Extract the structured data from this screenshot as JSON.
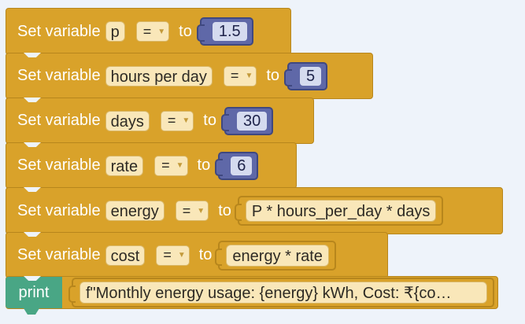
{
  "blocks": [
    {
      "label": "Set variable",
      "var": "p",
      "op": "=",
      "to": "to",
      "value": "1.5",
      "kind": "number"
    },
    {
      "label": "Set variable",
      "var": "hours per day",
      "op": "=",
      "to": "to",
      "value": "5",
      "kind": "number"
    },
    {
      "label": "Set variable",
      "var": "days",
      "op": "=",
      "to": "to",
      "value": "30",
      "kind": "number"
    },
    {
      "label": "Set variable",
      "var": "rate",
      "op": "=",
      "to": "to",
      "value": "6",
      "kind": "number"
    },
    {
      "label": "Set variable",
      "var": "energy",
      "op": "=",
      "to": "to",
      "value": "P * hours_per_day * days",
      "kind": "expression"
    },
    {
      "label": "Set variable",
      "var": "cost",
      "op": "=",
      "to": "to",
      "value": "energy * rate",
      "kind": "expression"
    }
  ],
  "print": {
    "keyword": "print",
    "value": "f\"Monthly energy usage: {energy} kWh, Cost: ₹{co…"
  },
  "colors": {
    "workspace": "#eef3fa",
    "block": "#d9a22a",
    "number_block": "#5f68a8",
    "print_block": "#49a685"
  },
  "icons": {
    "dropdown": "dropdown-caret-icon"
  }
}
